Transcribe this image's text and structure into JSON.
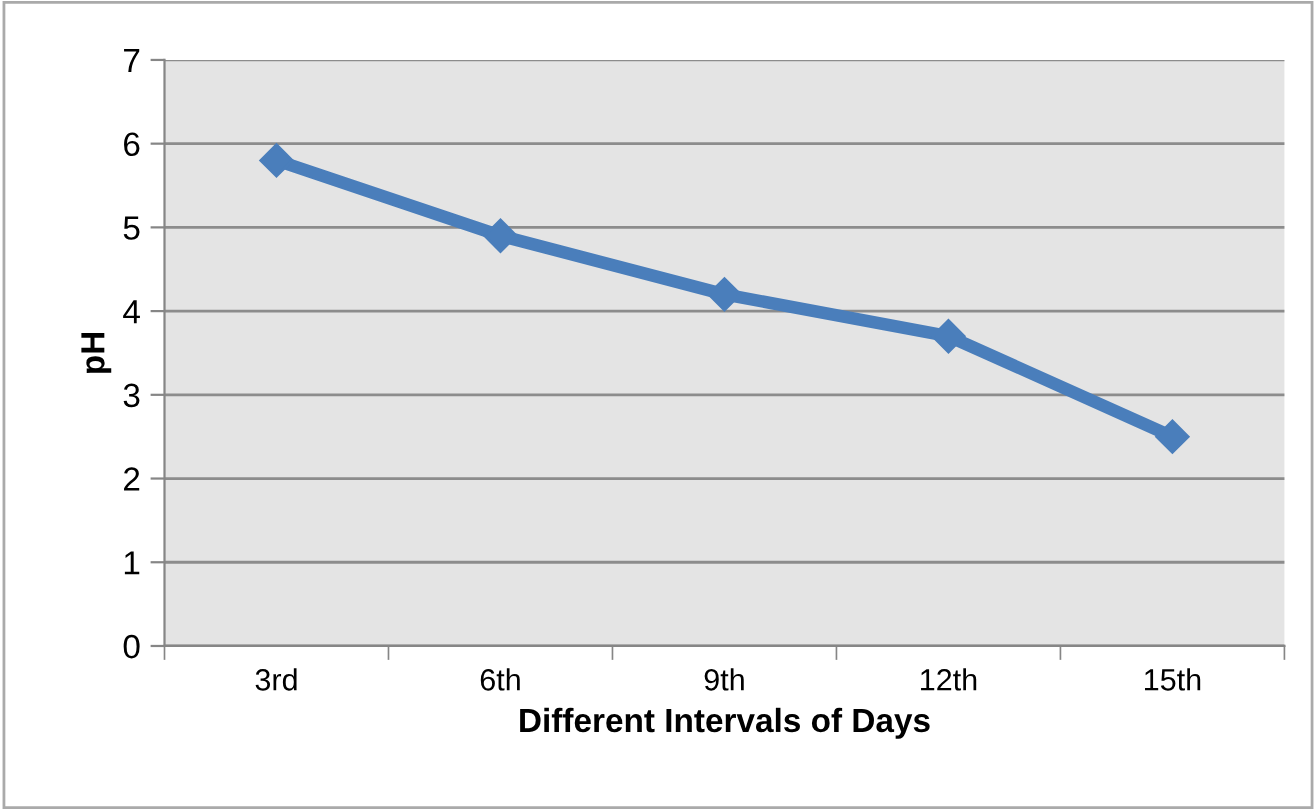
{
  "chart_data": {
    "type": "line",
    "xlabel": "Different Intervals of Days",
    "ylabel": "pH",
    "categories": [
      "3rd",
      "6th",
      "9th",
      "12th",
      "15th"
    ],
    "series": [
      {
        "color": "#4a7ebb",
        "values": [
          5.8,
          4.9,
          4.2,
          3.7,
          2.5
        ]
      }
    ],
    "ylim": [
      0,
      7
    ],
    "yticks": [
      0,
      1,
      2,
      3,
      4,
      5,
      6,
      7
    ],
    "grid": "y",
    "marker": "diamond",
    "line_style": "solid",
    "legend": false
  }
}
